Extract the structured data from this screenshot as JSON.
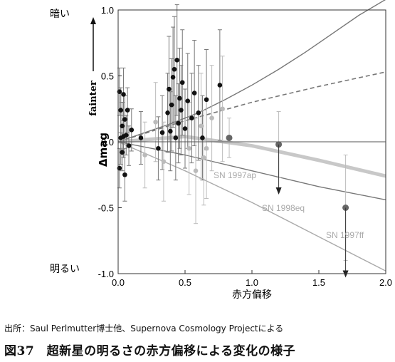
{
  "chart_data": {
    "type": "scatter",
    "title": "",
    "xlabel": "赤方偏移",
    "ylabel": "Δmag",
    "xlim": [
      0.0,
      2.0
    ],
    "ylim": [
      -1.0,
      1.0
    ],
    "x_ticks": [
      "0.0",
      "0.5",
      "1.0",
      "1.5",
      "2.0"
    ],
    "y_ticks": [
      "1.0",
      "0.5",
      "0.0",
      "-0.5",
      "-1.0"
    ],
    "top_label": "暗い",
    "bottom_label": "明るい",
    "arrow_label": "fainter",
    "grid": false,
    "legend": "none",
    "series": [
      {
        "type": "points",
        "color": "#111111",
        "points": [
          {
            "x": 0.01,
            "y": -0.2,
            "err": 0.15
          },
          {
            "x": 0.01,
            "y": 0.38,
            "err": 0.18
          },
          {
            "x": 0.02,
            "y": 0.03,
            "err": 0.2
          },
          {
            "x": 0.02,
            "y": 0.24,
            "err": 0.17
          },
          {
            "x": 0.03,
            "y": -0.08,
            "err": 0.14
          },
          {
            "x": 0.03,
            "y": 0.12,
            "err": 0.18
          },
          {
            "x": 0.04,
            "y": 0.36,
            "err": 0.2
          },
          {
            "x": 0.04,
            "y": 0.04,
            "err": 0.16
          },
          {
            "x": 0.05,
            "y": -0.25,
            "err": 0.2
          },
          {
            "x": 0.05,
            "y": 0.17,
            "err": 0.18
          },
          {
            "x": 0.06,
            "y": 0.05,
            "err": 0.15
          },
          {
            "x": 0.07,
            "y": 0.24,
            "err": 0.17
          },
          {
            "x": 0.08,
            "y": -0.03,
            "err": 0.15
          },
          {
            "x": 0.1,
            "y": 0.09,
            "err": 0.16
          },
          {
            "x": 0.17,
            "y": 0.03,
            "err": 0.2
          },
          {
            "x": 0.3,
            "y": -0.05,
            "err": 0.24
          },
          {
            "x": 0.33,
            "y": 0.07,
            "err": 0.28
          },
          {
            "x": 0.37,
            "y": 0.22,
            "err": 0.3
          },
          {
            "x": 0.38,
            "y": 0.4,
            "err": 0.4
          },
          {
            "x": 0.39,
            "y": 0.08,
            "err": 0.3
          },
          {
            "x": 0.4,
            "y": 0.28,
            "err": 0.35
          },
          {
            "x": 0.41,
            "y": 0.49,
            "err": 0.38
          },
          {
            "x": 0.42,
            "y": 0.55,
            "err": 0.4
          },
          {
            "x": 0.43,
            "y": 0.03,
            "err": 0.32
          },
          {
            "x": 0.44,
            "y": 0.62,
            "err": 0.42
          },
          {
            "x": 0.45,
            "y": 0.14,
            "err": 0.3
          },
          {
            "x": 0.46,
            "y": 0.33,
            "err": 0.38
          },
          {
            "x": 0.47,
            "y": 0.24,
            "err": 0.34
          },
          {
            "x": 0.48,
            "y": 0.45,
            "err": 0.4
          },
          {
            "x": 0.5,
            "y": 0.1,
            "err": 0.3
          },
          {
            "x": 0.52,
            "y": 0.31,
            "err": 0.36
          },
          {
            "x": 0.55,
            "y": 0.18,
            "err": 0.34
          },
          {
            "x": 0.57,
            "y": 0.37,
            "err": 0.4
          },
          {
            "x": 0.6,
            "y": 0.22,
            "err": 0.36
          },
          {
            "x": 0.63,
            "y": 0.03,
            "err": 0.32
          },
          {
            "x": 0.66,
            "y": 0.32,
            "err": 0.38
          },
          {
            "x": 0.76,
            "y": 0.43,
            "err": 0.42
          }
        ]
      },
      {
        "type": "points",
        "color": "#bbbbbb",
        "points": [
          {
            "x": 0.2,
            "y": -0.1,
            "err": 0.25
          },
          {
            "x": 0.28,
            "y": 0.15,
            "err": 0.3
          },
          {
            "x": 0.34,
            "y": -0.15,
            "err": 0.3
          },
          {
            "x": 0.53,
            "y": -0.05,
            "err": 0.35
          },
          {
            "x": 0.58,
            "y": -0.22,
            "err": 0.4
          },
          {
            "x": 0.62,
            "y": 0.12,
            "err": 0.4
          },
          {
            "x": 0.64,
            "y": -0.12,
            "err": 0.36
          },
          {
            "x": 0.66,
            "y": -0.05,
            "err": 0.38
          },
          {
            "x": 0.7,
            "y": 0.18,
            "err": 0.4
          },
          {
            "x": 0.78,
            "y": 0.25,
            "err": 0.4
          }
        ]
      },
      {
        "type": "named-points",
        "color": "#666666",
        "points": [
          {
            "x": 0.83,
            "y": 0.03,
            "err": 0.15,
            "label": ""
          },
          {
            "x": 1.2,
            "y": -0.02,
            "err": 0.25,
            "label": ""
          },
          {
            "x": 1.7,
            "y": -0.5,
            "err": 0.4,
            "label": ""
          }
        ]
      }
    ],
    "curves": [
      {
        "style": "solid",
        "color": "#777777",
        "y_at": [
          0,
          0.2,
          0.4,
          0.6,
          0.8,
          1.0,
          1.2,
          1.4,
          1.6,
          1.8,
          2.0
        ],
        "values": [
          0,
          0.07,
          0.14,
          0.22,
          0.32,
          0.43,
          0.55,
          0.68,
          0.82,
          0.96,
          1.08
        ]
      },
      {
        "style": "dashed",
        "color": "#777777",
        "y_at": [
          0,
          0.5,
          1.0,
          1.5,
          2.0
        ],
        "values": [
          0,
          0.16,
          0.3,
          0.42,
          0.53
        ]
      },
      {
        "style": "band",
        "color": "#c8c8c8",
        "y_at": [
          0,
          0.5,
          1.0,
          1.5,
          2.0
        ],
        "values": [
          0,
          0.04,
          -0.03,
          -0.14,
          -0.26
        ]
      },
      {
        "style": "solid",
        "color": "#777777",
        "y_at": [
          0,
          0.5,
          1.0,
          1.5,
          2.0
        ],
        "values": [
          0,
          -0.1,
          -0.22,
          -0.34,
          -0.44
        ]
      },
      {
        "style": "solid",
        "color": "#aaaaaa",
        "y_at": [
          0,
          0.5,
          1.0,
          1.5,
          2.0
        ],
        "values": [
          0,
          -0.22,
          -0.46,
          -0.72,
          -0.98
        ]
      }
    ],
    "annotations": [
      "SN 1997ap",
      "SN 1998eq",
      "SN 1997ff"
    ]
  },
  "source_note": "出所：Saul Perlmutter博士他、Supernova Cosmology Projectによる",
  "caption": "図37　超新星の明るさの赤方偏移による変化の様子"
}
